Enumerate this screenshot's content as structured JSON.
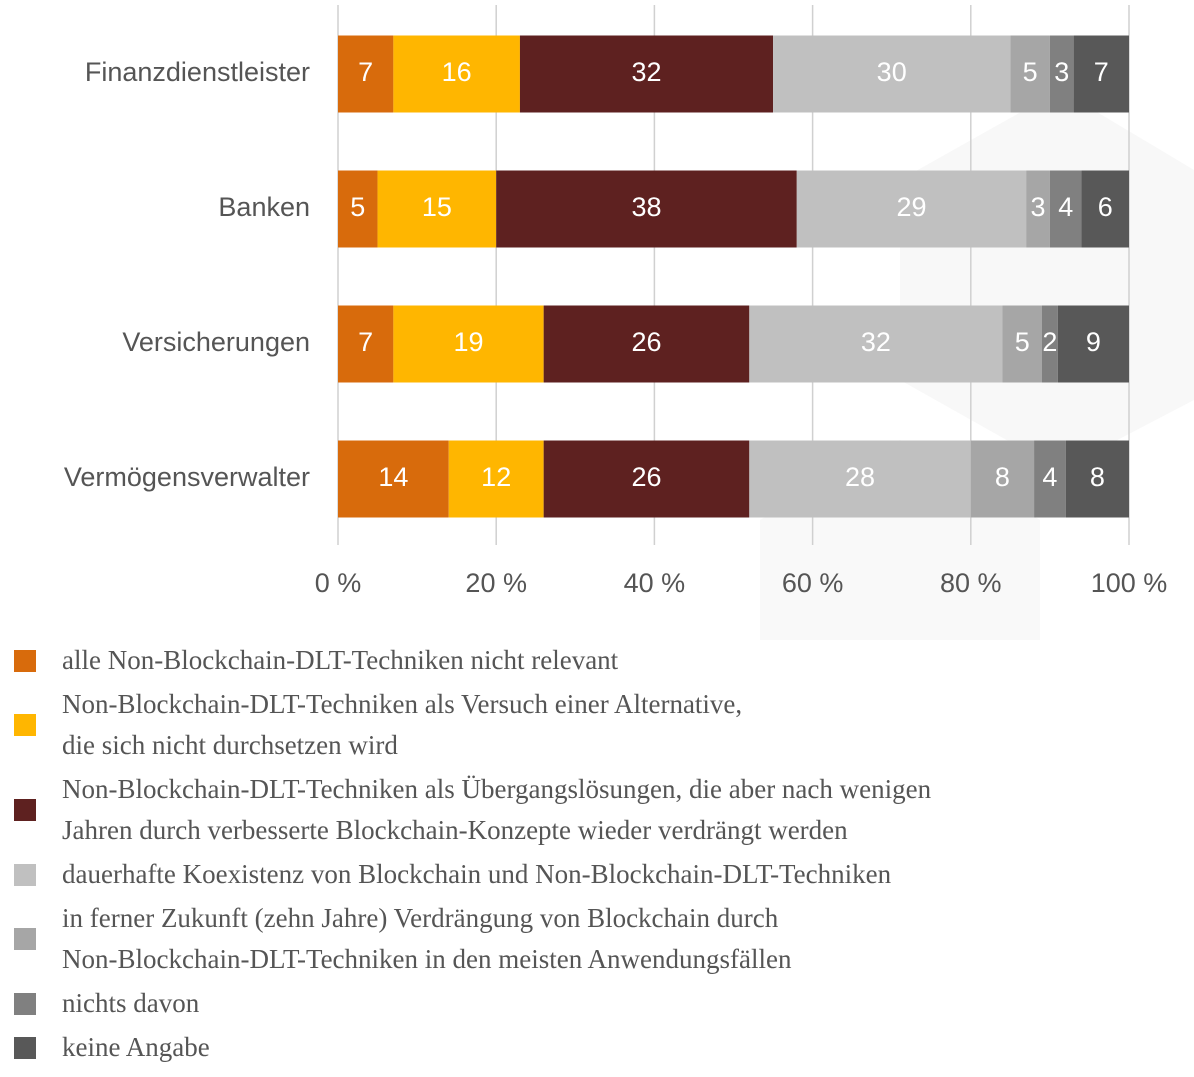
{
  "chart_data": {
    "type": "stacked-barh",
    "categories": [
      "Finanzdienstleister",
      "Banken",
      "Versicherungen",
      "Vermögensverwalter"
    ],
    "series": [
      {
        "name": "alle Non-Blockchain-DLT-Techniken nicht relevant",
        "color": "#d86b0c",
        "values": [
          7,
          5,
          7,
          14
        ]
      },
      {
        "name": "Non-Blockchain-DLT-Techniken als Versuch einer Alternative,\ndie sich nicht durchsetzen wird",
        "color": "#ffb600",
        "values": [
          16,
          15,
          19,
          12
        ]
      },
      {
        "name": "Non-Blockchain-DLT-Techniken als Übergangslösungen, die aber nach wenigen\nJahren durch verbesserte Blockchain-Konzepte wieder verdrängt werden",
        "color": "#5e2120",
        "values": [
          32,
          38,
          26,
          26
        ]
      },
      {
        "name": "dauerhafte Koexistenz von Blockchain und Non-Blockchain-DLT-Techniken",
        "color": "#c0c0c0",
        "values": [
          30,
          29,
          32,
          28
        ]
      },
      {
        "name": "in ferner Zukunft (zehn Jahre) Verdrängung von Blockchain durch\nNon-Blockchain-DLT-Techniken in den meisten Anwendungsfällen",
        "color": "#a6a6a6",
        "values": [
          5,
          3,
          5,
          8
        ]
      },
      {
        "name": "nichts davon",
        "color": "#808080",
        "values": [
          3,
          4,
          2,
          4
        ]
      },
      {
        "name": "keine Angabe",
        "color": "#585858",
        "values": [
          7,
          6,
          9,
          8
        ]
      }
    ],
    "xlim": [
      0,
      100
    ],
    "xticks": [
      {
        "value": 0,
        "label": "0 %"
      },
      {
        "value": 20,
        "label": "20 %"
      },
      {
        "value": 40,
        "label": "40 %"
      },
      {
        "value": 60,
        "label": "60 %"
      },
      {
        "value": 80,
        "label": "80 %"
      },
      {
        "value": 100,
        "label": "100 %"
      }
    ],
    "grid": true
  }
}
